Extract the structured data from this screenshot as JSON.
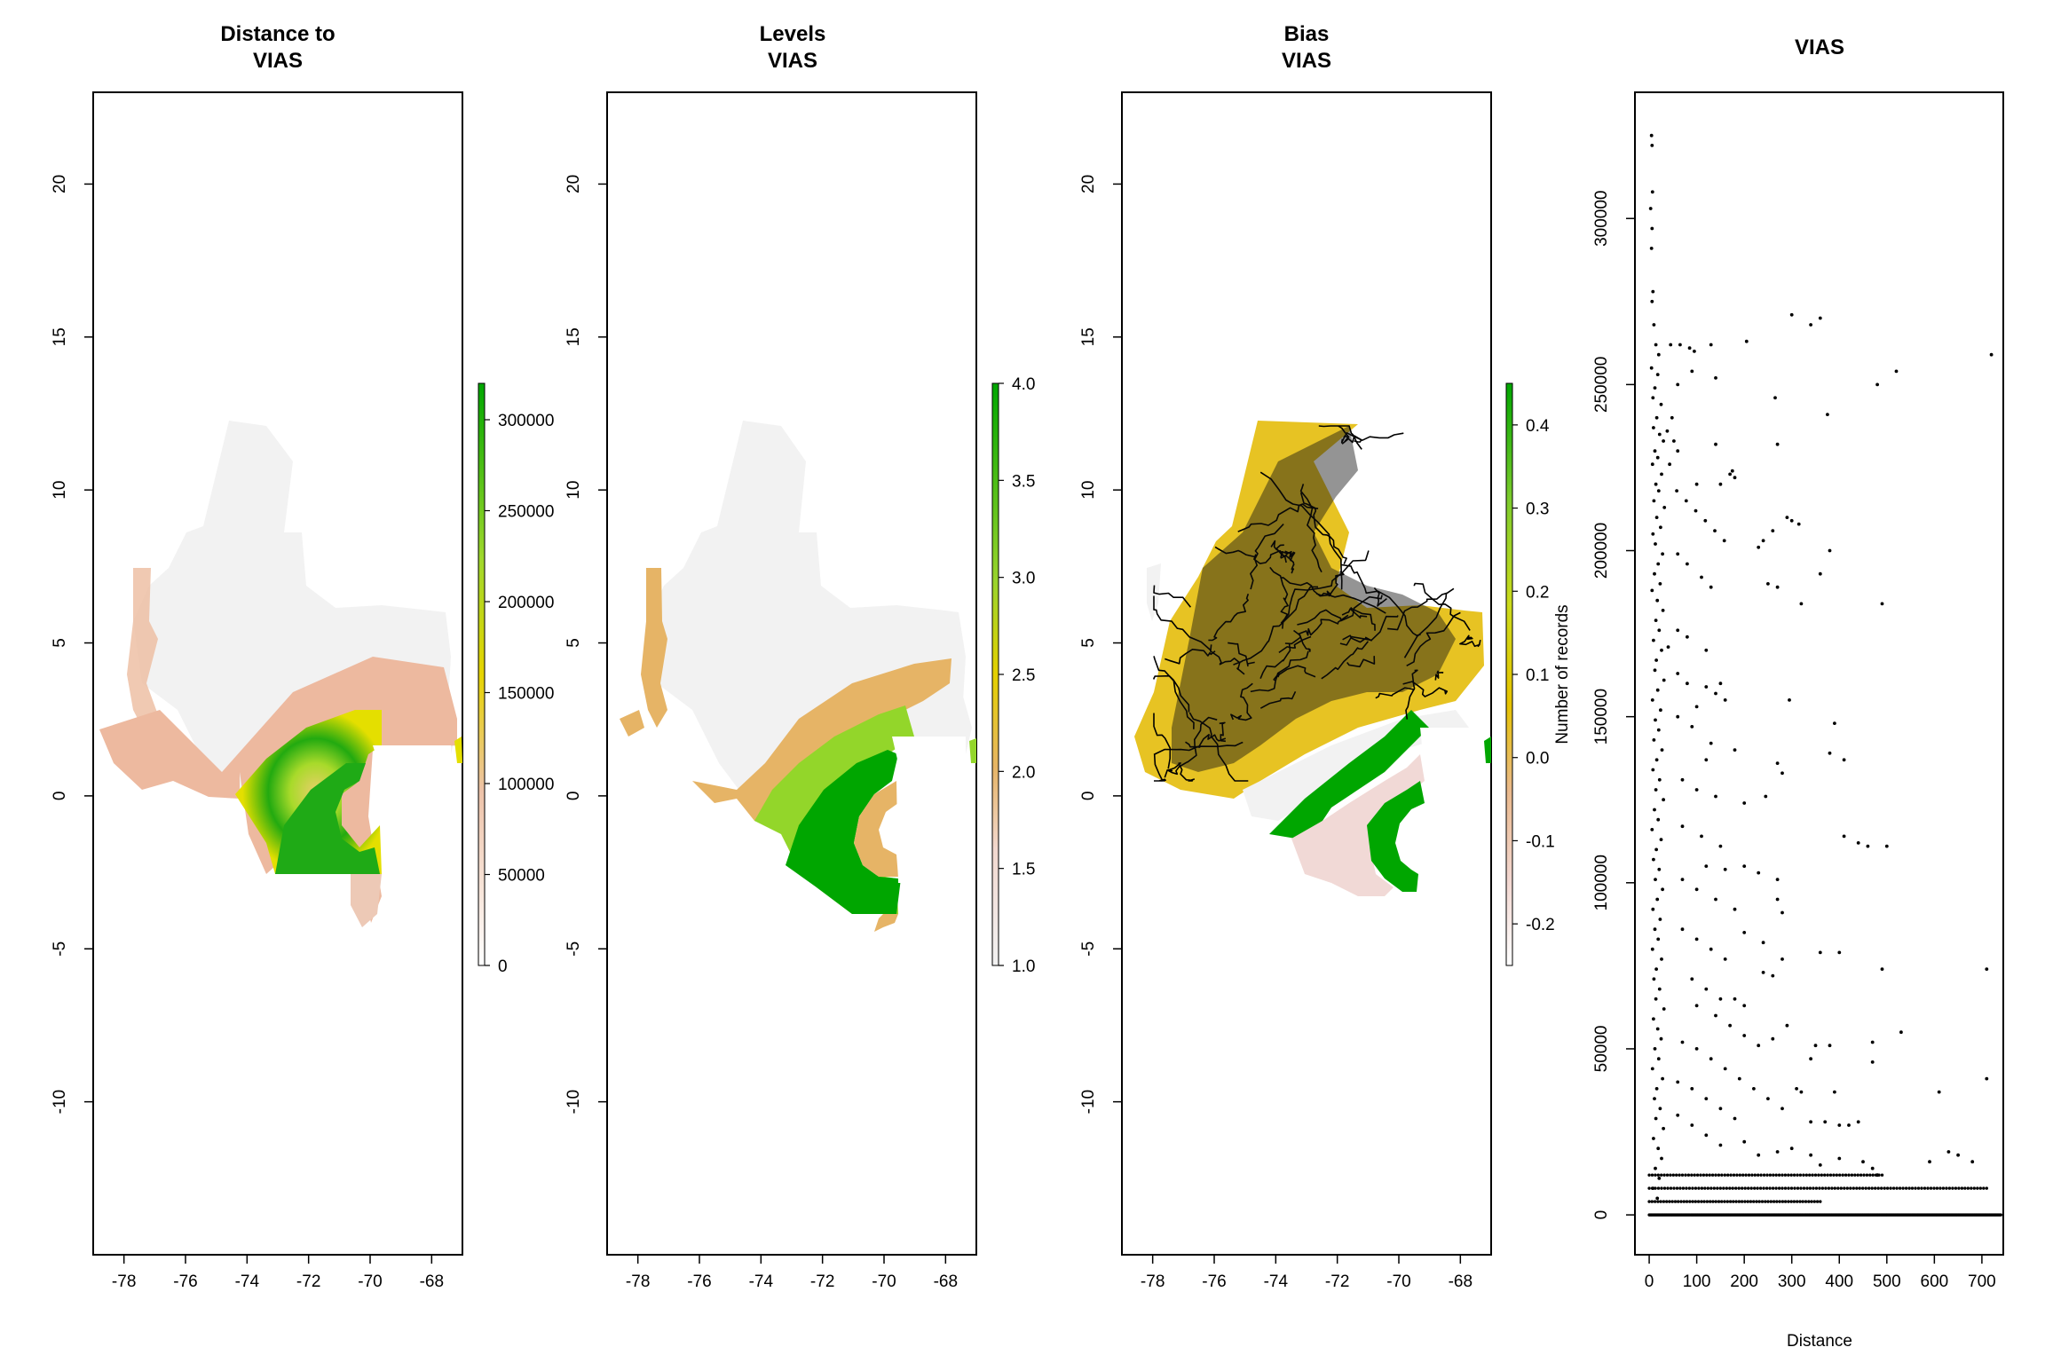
{
  "figure": {
    "background": "#ffffff",
    "colors": {
      "land": "#f2f2f2",
      "salmon": "#edb99f",
      "tan": "#e6b466",
      "yellow": "#e4e400",
      "lime": "#93d62a",
      "green": "#00a600",
      "darkgreen": "#3aa431",
      "roads": "#000000",
      "pink": "#f1d9d6",
      "mustard": "#e7c323"
    }
  },
  "chart_data": [
    {
      "type": "heatmap",
      "title": "Distance to\nVIAS",
      "xlim": [
        -79,
        -67
      ],
      "ylim": [
        -15,
        23
      ],
      "x_ticks": [
        -78,
        -76,
        -74,
        -72,
        -70,
        -68
      ],
      "y_ticks": [
        20,
        15,
        10,
        5,
        0,
        -5,
        -10
      ],
      "legend": {
        "ticks": [
          0,
          50000,
          100000,
          150000,
          200000,
          250000,
          300000
        ],
        "range": [
          0,
          320000
        ]
      }
    },
    {
      "type": "heatmap",
      "title": "Levels\nVIAS",
      "xlim": [
        -79,
        -67
      ],
      "ylim": [
        -15,
        23
      ],
      "x_ticks": [
        -78,
        -76,
        -74,
        -72,
        -70,
        -68
      ],
      "y_ticks": [
        20,
        15,
        10,
        5,
        0,
        -5,
        -10
      ],
      "legend": {
        "ticks": [
          1.0,
          1.5,
          2.0,
          2.5,
          3.0,
          3.5,
          4.0
        ],
        "range": [
          1.0,
          4.0
        ]
      }
    },
    {
      "type": "heatmap",
      "title": "Bias\nVIAS",
      "xlim": [
        -79,
        -67
      ],
      "ylim": [
        -15,
        23
      ],
      "x_ticks": [
        -78,
        -76,
        -74,
        -72,
        -70,
        -68
      ],
      "y_ticks": [
        20,
        15,
        10,
        5,
        0,
        -5,
        -10
      ],
      "legend": {
        "ticks": [
          -0.2,
          -0.1,
          0.0,
          0.1,
          0.2,
          0.3,
          0.4
        ],
        "range": [
          -0.25,
          0.45
        ],
        "label": "Number of records"
      }
    },
    {
      "type": "scatter",
      "title": "VIAS",
      "xlabel": "Distance",
      "ylabel": "",
      "xlim": [
        -30,
        745
      ],
      "ylim": [
        -12000,
        338000
      ],
      "x_ticks": [
        0,
        100,
        200,
        300,
        400,
        500,
        600,
        700
      ],
      "y_ticks": [
        0,
        50000,
        100000,
        150000,
        200000,
        250000,
        300000
      ],
      "points": [
        [
          5,
          325000
        ],
        [
          6,
          322000
        ],
        [
          7,
          308000
        ],
        [
          3,
          303000
        ],
        [
          6,
          297000
        ],
        [
          5,
          291000
        ],
        [
          8,
          278000
        ],
        [
          6,
          275000
        ],
        [
          10,
          268000
        ],
        [
          14,
          262000
        ],
        [
          20,
          259000
        ],
        [
          5,
          255000
        ],
        [
          18,
          253000
        ],
        [
          12,
          249000
        ],
        [
          8,
          246000
        ],
        [
          25,
          244000
        ],
        [
          16,
          240000
        ],
        [
          9,
          237000
        ],
        [
          22,
          235000
        ],
        [
          30,
          233000
        ],
        [
          12,
          230000
        ],
        [
          18,
          228000
        ],
        [
          7,
          226000
        ],
        [
          26,
          223000
        ],
        [
          14,
          220000
        ],
        [
          20,
          218000
        ],
        [
          10,
          215000
        ],
        [
          32,
          213000
        ],
        [
          16,
          210000
        ],
        [
          24,
          207000
        ],
        [
          8,
          205000
        ],
        [
          13,
          202000
        ],
        [
          28,
          199000
        ],
        [
          19,
          196000
        ],
        [
          11,
          193000
        ],
        [
          23,
          190000
        ],
        [
          6,
          188000
        ],
        [
          17,
          185000
        ],
        [
          29,
          182000
        ],
        [
          14,
          179000
        ],
        [
          21,
          176000
        ],
        [
          9,
          173000
        ],
        [
          26,
          170000
        ],
        [
          15,
          167000
        ],
        [
          12,
          164000
        ],
        [
          31,
          161000
        ],
        [
          18,
          158000
        ],
        [
          7,
          155000
        ],
        [
          24,
          152000
        ],
        [
          13,
          149000
        ],
        [
          20,
          146000
        ],
        [
          10,
          143000
        ],
        [
          27,
          140000
        ],
        [
          16,
          137000
        ],
        [
          8,
          134000
        ],
        [
          22,
          131000
        ],
        [
          14,
          128000
        ],
        [
          30,
          125000
        ],
        [
          11,
          122000
        ],
        [
          19,
          119000
        ],
        [
          6,
          116000
        ],
        [
          25,
          113000
        ],
        [
          15,
          110000
        ],
        [
          9,
          107000
        ],
        [
          21,
          104000
        ],
        [
          13,
          101000
        ],
        [
          28,
          98000
        ],
        [
          17,
          95000
        ],
        [
          8,
          92000
        ],
        [
          23,
          89000
        ],
        [
          12,
          86000
        ],
        [
          19,
          83000
        ],
        [
          7,
          80000
        ],
        [
          26,
          77000
        ],
        [
          15,
          74000
        ],
        [
          10,
          71000
        ],
        [
          22,
          68000
        ],
        [
          14,
          65000
        ],
        [
          31,
          62000
        ],
        [
          9,
          59000
        ],
        [
          18,
          56000
        ],
        [
          25,
          53000
        ],
        [
          12,
          50000
        ],
        [
          20,
          47000
        ],
        [
          7,
          44000
        ],
        [
          28,
          41000
        ],
        [
          16,
          38000
        ],
        [
          11,
          35000
        ],
        [
          23,
          32000
        ],
        [
          14,
          29000
        ],
        [
          30,
          26000
        ],
        [
          9,
          23000
        ],
        [
          19,
          20000
        ],
        [
          26,
          17000
        ],
        [
          13,
          14000
        ],
        [
          21,
          11000
        ],
        [
          8,
          8000
        ],
        [
          17,
          5000
        ],
        [
          45,
          262000
        ],
        [
          65,
          262000
        ],
        [
          85,
          261000
        ],
        [
          95,
          260000
        ],
        [
          130,
          262000
        ],
        [
          205,
          263000
        ],
        [
          300,
          271000
        ],
        [
          340,
          268000
        ],
        [
          360,
          270000
        ],
        [
          720,
          259000
        ],
        [
          710,
          74000
        ],
        [
          90,
          254000
        ],
        [
          140,
          252000
        ],
        [
          60,
          250000
        ],
        [
          480,
          250000
        ],
        [
          520,
          254000
        ],
        [
          48,
          240000
        ],
        [
          52,
          233000
        ],
        [
          375,
          241000
        ],
        [
          38,
          236000
        ],
        [
          265,
          246000
        ],
        [
          270,
          232000
        ],
        [
          43,
          226000
        ],
        [
          60,
          230000
        ],
        [
          100,
          220000
        ],
        [
          150,
          220000
        ],
        [
          170,
          223000
        ],
        [
          180,
          222000
        ],
        [
          140,
          232000
        ],
        [
          175,
          224000
        ],
        [
          290,
          210000
        ],
        [
          300,
          209000
        ],
        [
          315,
          208000
        ],
        [
          260,
          206000
        ],
        [
          230,
          201000
        ],
        [
          240,
          203000
        ],
        [
          380,
          200000
        ],
        [
          58,
          218000
        ],
        [
          78,
          215000
        ],
        [
          98,
          212000
        ],
        [
          118,
          209000
        ],
        [
          138,
          206000
        ],
        [
          158,
          203000
        ],
        [
          360,
          193000
        ],
        [
          250,
          190000
        ],
        [
          270,
          189000
        ],
        [
          320,
          184000
        ],
        [
          490,
          184000
        ],
        [
          60,
          199000
        ],
        [
          80,
          196000
        ],
        [
          110,
          192000
        ],
        [
          130,
          189000
        ],
        [
          60,
          176000
        ],
        [
          80,
          174000
        ],
        [
          120,
          170000
        ],
        [
          40,
          171000
        ],
        [
          60,
          163000
        ],
        [
          80,
          160000
        ],
        [
          120,
          159000
        ],
        [
          140,
          157000
        ],
        [
          150,
          160000
        ],
        [
          160,
          155000
        ],
        [
          100,
          153000
        ],
        [
          295,
          155000
        ],
        [
          390,
          148000
        ],
        [
          60,
          150000
        ],
        [
          90,
          147000
        ],
        [
          130,
          142000
        ],
        [
          180,
          140000
        ],
        [
          270,
          136000
        ],
        [
          280,
          133000
        ],
        [
          120,
          137000
        ],
        [
          245,
          126000
        ],
        [
          380,
          139000
        ],
        [
          410,
          137000
        ],
        [
          70,
          131000
        ],
        [
          100,
          128000
        ],
        [
          140,
          126000
        ],
        [
          200,
          124000
        ],
        [
          410,
          114000
        ],
        [
          440,
          112000
        ],
        [
          460,
          111000
        ],
        [
          500,
          111000
        ],
        [
          70,
          117000
        ],
        [
          110,
          114000
        ],
        [
          150,
          111000
        ],
        [
          120,
          105000
        ],
        [
          160,
          104000
        ],
        [
          200,
          105000
        ],
        [
          230,
          103000
        ],
        [
          270,
          101000
        ],
        [
          70,
          101000
        ],
        [
          100,
          98000
        ],
        [
          140,
          95000
        ],
        [
          180,
          92000
        ],
        [
          270,
          95000
        ],
        [
          280,
          91000
        ],
        [
          360,
          79000
        ],
        [
          400,
          79000
        ],
        [
          200,
          85000
        ],
        [
          240,
          82000
        ],
        [
          280,
          77000
        ],
        [
          490,
          74000
        ],
        [
          70,
          86000
        ],
        [
          100,
          83000
        ],
        [
          130,
          80000
        ],
        [
          160,
          77000
        ],
        [
          240,
          73000
        ],
        [
          260,
          72000
        ],
        [
          90,
          71000
        ],
        [
          120,
          68000
        ],
        [
          150,
          65000
        ],
        [
          180,
          65000
        ],
        [
          200,
          63000
        ],
        [
          100,
          63000
        ],
        [
          140,
          60000
        ],
        [
          170,
          57000
        ],
        [
          200,
          54000
        ],
        [
          230,
          51000
        ],
        [
          290,
          57000
        ],
        [
          260,
          53000
        ],
        [
          350,
          51000
        ],
        [
          380,
          51000
        ],
        [
          470,
          52000
        ],
        [
          530,
          55000
        ],
        [
          70,
          52000
        ],
        [
          100,
          50000
        ],
        [
          130,
          47000
        ],
        [
          160,
          44000
        ],
        [
          190,
          41000
        ],
        [
          220,
          38000
        ],
        [
          250,
          35000
        ],
        [
          280,
          32000
        ],
        [
          340,
          47000
        ],
        [
          390,
          37000
        ],
        [
          470,
          46000
        ],
        [
          610,
          37000
        ],
        [
          710,
          41000
        ],
        [
          60,
          40000
        ],
        [
          90,
          38000
        ],
        [
          120,
          35000
        ],
        [
          150,
          32000
        ],
        [
          180,
          29000
        ],
        [
          310,
          38000
        ],
        [
          320,
          37000
        ],
        [
          340,
          28000
        ],
        [
          370,
          28000
        ],
        [
          400,
          27000
        ],
        [
          420,
          27000
        ],
        [
          440,
          28000
        ],
        [
          60,
          30000
        ],
        [
          90,
          27000
        ],
        [
          120,
          24000
        ],
        [
          150,
          21000
        ],
        [
          200,
          22000
        ],
        [
          230,
          18000
        ],
        [
          270,
          19000
        ],
        [
          300,
          20000
        ],
        [
          340,
          18000
        ],
        [
          360,
          15000
        ],
        [
          400,
          17000
        ],
        [
          450,
          16000
        ],
        [
          470,
          14000
        ],
        [
          480,
          12000
        ],
        [
          590,
          16000
        ],
        [
          630,
          19000
        ],
        [
          650,
          18000
        ],
        [
          680,
          16000
        ]
      ],
      "bands": [
        {
          "y": 12000,
          "x_from": 0,
          "x_to": 490,
          "count": 78
        },
        {
          "y": 8000,
          "x_from": 0,
          "x_to": 710,
          "count": 110
        },
        {
          "y": 4000,
          "x_from": 0,
          "x_to": 360,
          "count": 60
        },
        {
          "y": 0,
          "x_from": 0,
          "x_to": 740,
          "count": 420
        }
      ]
    }
  ]
}
